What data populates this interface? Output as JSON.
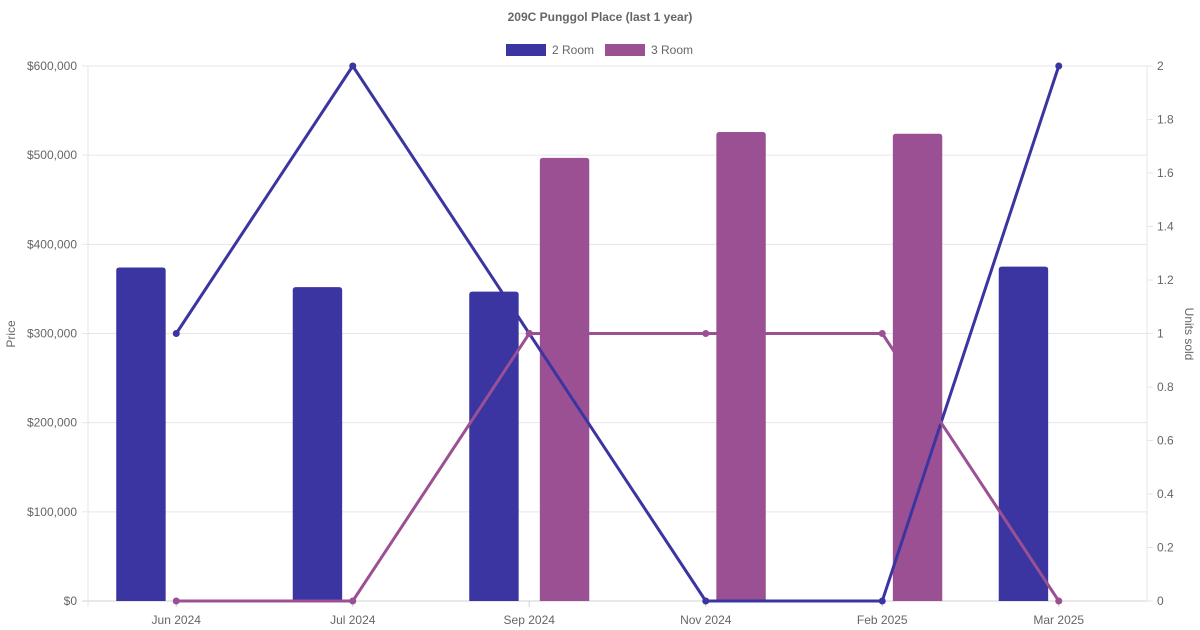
{
  "chart_data": {
    "type": "bar",
    "title": "209C Punggol Place (last 1 year)",
    "categories": [
      "Jun 2024",
      "Jul 2024",
      "Sep 2024",
      "Nov 2024",
      "Feb 2025",
      "Mar 2025"
    ],
    "legend": {
      "position": "top-center"
    },
    "grid": true,
    "y_left": {
      "label": "Price",
      "ylim": [
        0,
        600000
      ],
      "ticks": [
        0,
        100000,
        200000,
        300000,
        400000,
        500000,
        600000
      ],
      "tick_labels": [
        "$0",
        "$100,000",
        "$200,000",
        "$300,000",
        "$400,000",
        "$500,000",
        "$600,000"
      ]
    },
    "y_right": {
      "label": "Units sold",
      "ylim": [
        0,
        2
      ],
      "ticks": [
        0,
        0.2,
        0.4,
        0.6,
        0.8,
        1,
        1.2,
        1.4,
        1.6,
        1.8,
        2
      ],
      "tick_labels": [
        "0",
        "0.2",
        "0.4",
        "0.6",
        "0.8",
        "1",
        "1.2",
        "1.4",
        "1.6",
        "1.8",
        "2"
      ]
    },
    "series": [
      {
        "name": "2 Room",
        "type": "bar",
        "axis": "left",
        "color": "#3a35a0",
        "values": [
          374000,
          352000,
          347000,
          null,
          null,
          375000
        ]
      },
      {
        "name": "3 Room",
        "type": "bar",
        "axis": "left",
        "color": "#9c5094",
        "values": [
          null,
          null,
          497000,
          526000,
          524000,
          null
        ]
      },
      {
        "name": "2 Room",
        "type": "line",
        "axis": "right",
        "color": "#3a35a0",
        "values": [
          1,
          2,
          1,
          0,
          0,
          2
        ]
      },
      {
        "name": "3 Room",
        "type": "line",
        "axis": "right",
        "color": "#9c5094",
        "values": [
          0,
          0,
          1,
          1,
          1,
          0
        ]
      }
    ]
  }
}
